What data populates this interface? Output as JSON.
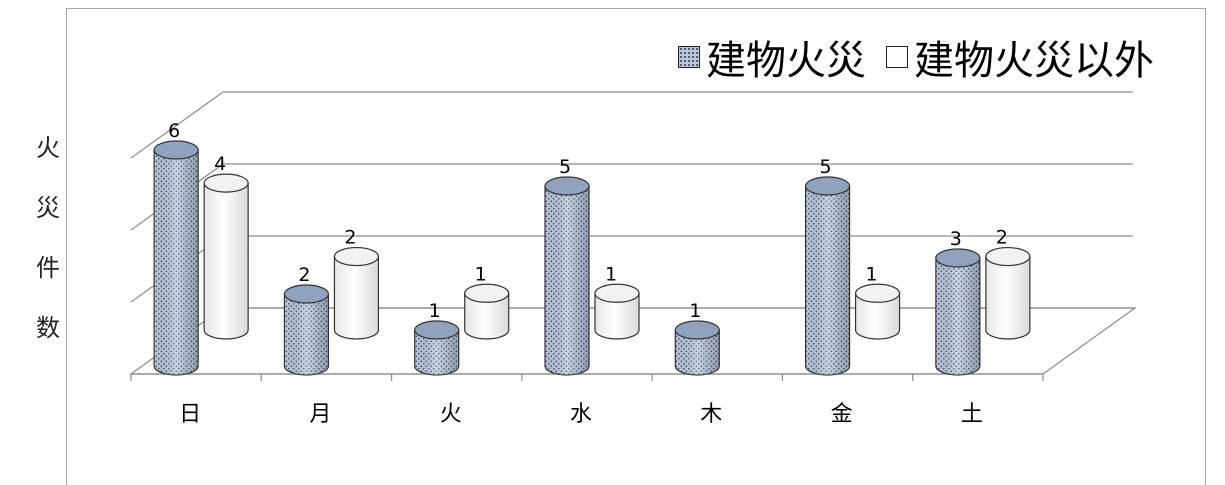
{
  "chart_data": {
    "type": "bar",
    "style": "3d-cylinder",
    "categories": [
      "日",
      "月",
      "火",
      "水",
      "木",
      "金",
      "土"
    ],
    "series": [
      {
        "name": "建物火災",
        "values": [
          6,
          2,
          1,
          5,
          1,
          5,
          3
        ],
        "color": "#b7c8e0",
        "pattern": "dotted"
      },
      {
        "name": "建物火災以外",
        "values": [
          4,
          2,
          1,
          1,
          0,
          1,
          2
        ],
        "color": "#ffffff",
        "pattern": "none"
      }
    ],
    "ylabel": "火災件数",
    "ylabel_chars": [
      "火",
      "災",
      "件",
      "数"
    ],
    "ylim": [
      0,
      6
    ],
    "grid": true,
    "legend_position": "top-right",
    "data_labels": true
  }
}
